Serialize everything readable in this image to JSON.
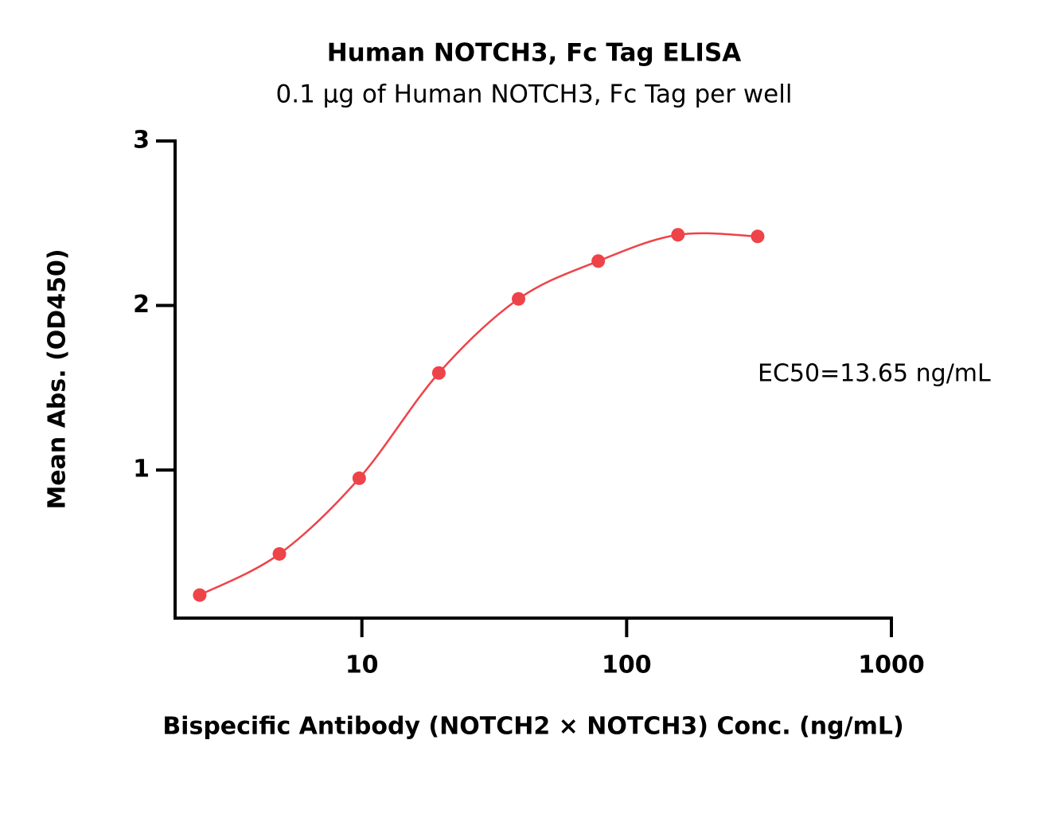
{
  "chart_data": {
    "type": "scatter",
    "title": "Human NOTCH3, Fc Tag ELISA",
    "subtitle": "0.1 µg of Human NOTCH3, Fc Tag per well",
    "x_label": "Bispecific Antibody (NOTCH2 × NOTCH3) Conc. (ng/mL)",
    "y_label": "Mean Abs. (OD450)",
    "annotation": "EC50=13.65 ng/mL",
    "x": [
      2.44,
      4.88,
      9.77,
      19.53,
      39.06,
      78.125,
      156.25,
      312.5
    ],
    "series": [
      {
        "color": "#ee4349",
        "values": [
          0.24,
          0.49,
          0.95,
          1.59,
          2.04,
          2.27,
          2.43,
          2.42
        ]
      }
    ],
    "x_log": true,
    "xlim": [
      1.97,
      1000
    ],
    "xticks": [
      10,
      100,
      1000
    ],
    "ylim": [
      0.1,
      3
    ],
    "yticks": [
      1,
      2,
      3
    ]
  }
}
